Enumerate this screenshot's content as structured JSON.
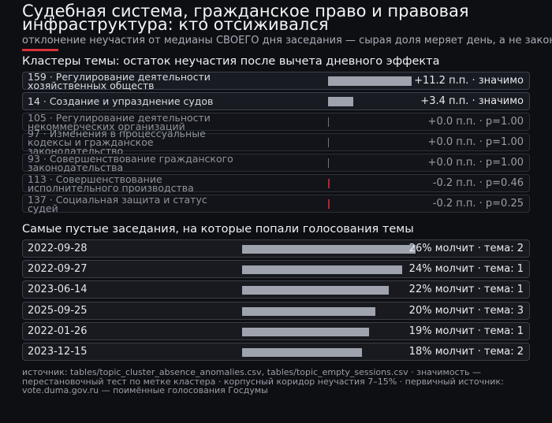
{
  "header": {
    "title": "Судебная система, гражданское право и правовая инфраструктура: кто отсиживался",
    "subtitle": "отклонение неучастия от медианы СВОЕГО дня заседания — сырая доля меряет день, а не закон"
  },
  "colors": {
    "accent": "#d6333b",
    "bar": "#9ea3ad",
    "negative": "#b3262d"
  },
  "clusters": {
    "heading": "Кластеры темы: остаток неучастия после вычета дневного эффекта",
    "items": [
      {
        "label": "159 · Регулирование деятельности хозяйственных обществ",
        "value": 11.2,
        "value_text": "+11.2 п.п. · значимо",
        "significant": true
      },
      {
        "label": "14 · Создание и упразднение судов",
        "value": 3.4,
        "value_text": "+3.4 п.п. · значимо",
        "significant": true
      },
      {
        "label": "105 · Регулирование деятельности некоммерческих организаций",
        "value": 0.0,
        "value_text": "+0.0 п.п. · p=1.00",
        "significant": false
      },
      {
        "label": "97 · Изменения в процессуальные кодексы и гражданское законодательство",
        "value": 0.0,
        "value_text": "+0.0 п.п. · p=1.00",
        "significant": false
      },
      {
        "label": "93 · Совершенствование гражданского законодательства",
        "value": 0.0,
        "value_text": "+0.0 п.п. · p=1.00",
        "significant": false
      },
      {
        "label": "113 · Совершенствование исполнительного производства",
        "value": -0.2,
        "value_text": "-0.2 п.п. · p=0.46",
        "significant": false
      },
      {
        "label": "137 · Социальная защита и статус судей",
        "value": -0.2,
        "value_text": "-0.2 п.п. · p=0.25",
        "significant": false
      }
    ]
  },
  "sessions": {
    "heading": "Самые пустые заседания, на которые попали голосования темы",
    "items": [
      {
        "date": "2022-09-28",
        "share": 26,
        "value_text": "26% молчит · тема: 2"
      },
      {
        "date": "2022-09-27",
        "share": 24,
        "value_text": "24% молчит · тема: 1"
      },
      {
        "date": "2023-06-14",
        "share": 22,
        "value_text": "22% молчит · тема: 1"
      },
      {
        "date": "2025-09-25",
        "share": 20,
        "value_text": "20% молчит · тема: 3"
      },
      {
        "date": "2022-01-26",
        "share": 19,
        "value_text": "19% молчит · тема: 1"
      },
      {
        "date": "2023-12-15",
        "share": 18,
        "value_text": "18% молчит · тема: 2"
      }
    ]
  },
  "footer": "источник: tables/topic_cluster_absence_anomalies.csv, tables/topic_empty_sessions.csv · значимость — перестановочный тест по метке кластера · корпусный коридор неучастия 7–15% · первичный источник: vote.duma.gov.ru — поимённые голосования Госдумы"
}
